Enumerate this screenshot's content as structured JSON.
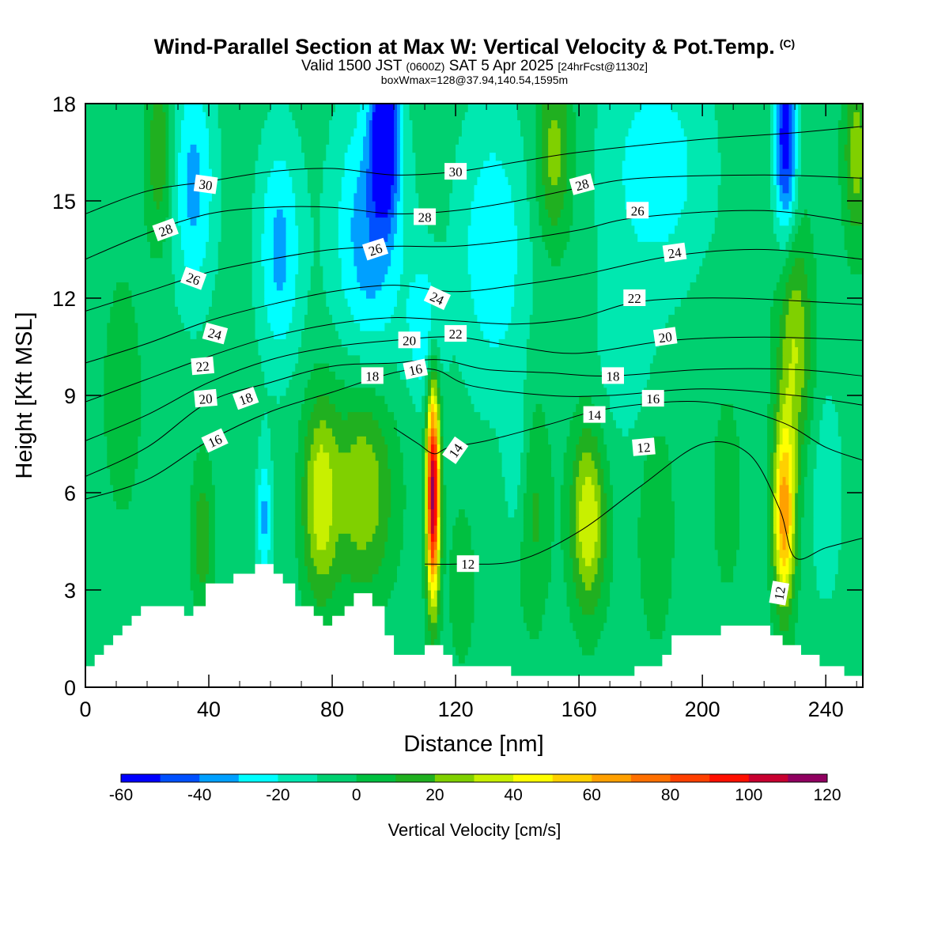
{
  "title": {
    "main": "Wind-Parallel Section at Max W: Vertical Velocity & Pot.Temp.",
    "copyright": "(C)",
    "valid_prefix": "Valid 1500 JST",
    "valid_utc": "(0600Z)",
    "valid_date": "SAT 5 Apr 2025",
    "forecast": "[24hrFcst@1130z]",
    "box": "boxWmax=128@37.94,140.54,1595m"
  },
  "chart_data": {
    "type": "heatmap",
    "xlabel": "Distance [nm]",
    "ylabel": "Height [Kft MSL]",
    "xlim": [
      0,
      252
    ],
    "ylim": [
      0,
      18
    ],
    "x_ticks": [
      0,
      40,
      80,
      120,
      160,
      200,
      240
    ],
    "y_ticks": [
      0,
      3,
      6,
      9,
      12,
      15,
      18
    ],
    "colorbar": {
      "label": "Vertical Velocity [cm/s]",
      "ticks": [
        -60,
        -40,
        -20,
        0,
        20,
        40,
        60,
        80,
        100,
        120
      ],
      "levels": [
        -60,
        -50,
        -40,
        -30,
        -20,
        -10,
        0,
        10,
        20,
        30,
        40,
        50,
        60,
        70,
        80,
        90,
        100,
        110,
        120
      ],
      "colors": [
        "#0000ff",
        "#0050ff",
        "#00a0ff",
        "#00ffff",
        "#00e8b0",
        "#00d070",
        "#00c040",
        "#20b020",
        "#80d000",
        "#c8f000",
        "#ffff00",
        "#ffd000",
        "#ffa000",
        "#ff7000",
        "#ff4000",
        "#ff1000",
        "#c80030",
        "#900060"
      ]
    },
    "w_background": -5,
    "updrafts": [
      {
        "x": 112.7,
        "z": 6.0,
        "peak": 120,
        "sx": 1.5,
        "sz": 2.3
      },
      {
        "x": 226.5,
        "z": 5.3,
        "peak": 72,
        "sx": 2.5,
        "sz": 2.0
      },
      {
        "x": 90,
        "z": 6.2,
        "peak": 35,
        "sx": 7,
        "sz": 2.3
      },
      {
        "x": 76,
        "z": 5.8,
        "peak": 40,
        "sx": 4,
        "sz": 2.2
      },
      {
        "x": 163,
        "z": 5.2,
        "peak": 45,
        "sx": 4,
        "sz": 2.0
      },
      {
        "x": 38,
        "z": 4.6,
        "peak": 22,
        "sx": 2.5,
        "sz": 1.7
      },
      {
        "x": 122,
        "z": 3.2,
        "peak": 12,
        "sx": 3,
        "sz": 1.8
      },
      {
        "x": 145,
        "z": 5.5,
        "peak": 18,
        "sx": 4,
        "sz": 2.5
      },
      {
        "x": 185,
        "z": 5.0,
        "peak": 14,
        "sx": 4,
        "sz": 2.5
      },
      {
        "x": 208,
        "z": 6.0,
        "peak": 14,
        "sx": 3,
        "sz": 2.0
      },
      {
        "x": 230,
        "z": 10.5,
        "peak": 35,
        "sx": 4,
        "sz": 2.5
      },
      {
        "x": 152,
        "z": 16.5,
        "peak": 30,
        "sx": 4,
        "sz": 2.0
      },
      {
        "x": 250,
        "z": 16.5,
        "peak": 30,
        "sx": 3,
        "sz": 2.0
      },
      {
        "x": 24,
        "z": 16.5,
        "peak": 25,
        "sx": 3,
        "sz": 2.0
      },
      {
        "x": 12,
        "z": 9.0,
        "peak": 10,
        "sx": 5,
        "sz": 3.0
      }
    ],
    "downdrafts": [
      {
        "x": 97,
        "z": 17.2,
        "peak": -62,
        "sx": 3,
        "sz": 1.8
      },
      {
        "x": 227,
        "z": 17.0,
        "peak": -55,
        "sx": 2.5,
        "sz": 2.2
      },
      {
        "x": 92,
        "z": 14.0,
        "peak": -32,
        "sx": 8,
        "sz": 3.0
      },
      {
        "x": 63,
        "z": 13.5,
        "peak": -28,
        "sx": 5,
        "sz": 2.5
      },
      {
        "x": 35,
        "z": 15.5,
        "peak": -28,
        "sx": 5,
        "sz": 2.5
      },
      {
        "x": 132,
        "z": 13.5,
        "peak": -24,
        "sx": 8,
        "sz": 3.0
      },
      {
        "x": 185,
        "z": 16.0,
        "peak": -22,
        "sx": 12,
        "sz": 2.5
      },
      {
        "x": 110,
        "z": 11.0,
        "peak": -24,
        "sx": 4,
        "sz": 1.5
      },
      {
        "x": 58,
        "z": 5.2,
        "peak": -28,
        "sx": 1.6,
        "sz": 1.5
      },
      {
        "x": 140,
        "z": 7.0,
        "peak": -15,
        "sx": 3,
        "sz": 2.0
      },
      {
        "x": 240,
        "z": 6.0,
        "peak": -12,
        "sx": 4,
        "sz": 2.5
      },
      {
        "x": 175,
        "z": 10.0,
        "peak": -10,
        "sx": 8,
        "sz": 2.0
      }
    ],
    "terrain": [
      [
        0,
        0.65
      ],
      [
        3,
        0.65
      ],
      [
        3,
        1.0
      ],
      [
        6,
        1.0
      ],
      [
        6,
        1.3
      ],
      [
        9,
        1.3
      ],
      [
        9,
        1.6
      ],
      [
        12,
        1.6
      ],
      [
        12,
        1.9
      ],
      [
        15,
        1.9
      ],
      [
        15,
        2.2
      ],
      [
        18,
        2.2
      ],
      [
        18,
        2.5
      ],
      [
        32,
        2.5
      ],
      [
        32,
        2.2
      ],
      [
        35,
        2.2
      ],
      [
        35,
        2.5
      ],
      [
        39,
        2.5
      ],
      [
        39,
        3.2
      ],
      [
        48,
        3.2
      ],
      [
        48,
        3.5
      ],
      [
        55,
        3.5
      ],
      [
        55,
        3.8
      ],
      [
        61,
        3.8
      ],
      [
        61,
        3.5
      ],
      [
        64,
        3.5
      ],
      [
        64,
        3.2
      ],
      [
        68,
        3.2
      ],
      [
        68,
        2.5
      ],
      [
        74,
        2.5
      ],
      [
        74,
        2.2
      ],
      [
        77,
        2.2
      ],
      [
        77,
        1.9
      ],
      [
        80,
        1.9
      ],
      [
        80,
        2.2
      ],
      [
        84,
        2.2
      ],
      [
        84,
        2.5
      ],
      [
        87,
        2.5
      ],
      [
        87,
        2.9
      ],
      [
        93,
        2.9
      ],
      [
        93,
        2.5
      ],
      [
        97,
        2.5
      ],
      [
        97,
        1.6
      ],
      [
        100,
        1.6
      ],
      [
        100,
        1.0
      ],
      [
        110,
        1.0
      ],
      [
        110,
        1.3
      ],
      [
        116,
        1.3
      ],
      [
        116,
        1.0
      ],
      [
        119,
        1.0
      ],
      [
        119,
        0.65
      ],
      [
        138,
        0.65
      ],
      [
        138,
        0.35
      ],
      [
        178,
        0.35
      ],
      [
        178,
        0.65
      ],
      [
        187,
        0.65
      ],
      [
        187,
        1.0
      ],
      [
        190,
        1.0
      ],
      [
        190,
        1.6
      ],
      [
        206,
        1.6
      ],
      [
        206,
        1.9
      ],
      [
        222,
        1.9
      ],
      [
        222,
        1.6
      ],
      [
        226,
        1.6
      ],
      [
        226,
        1.3
      ],
      [
        232,
        1.3
      ],
      [
        232,
        1.0
      ],
      [
        238,
        1.0
      ],
      [
        238,
        0.65
      ],
      [
        246,
        0.65
      ],
      [
        246,
        0.35
      ],
      [
        252,
        0.35
      ]
    ],
    "theta_contours": [
      {
        "level": 12,
        "points": [
          [
            110,
            3.8
          ],
          [
            120,
            3.8
          ],
          [
            140,
            3.9
          ],
          [
            160,
            4.8
          ],
          [
            180,
            6.2
          ],
          [
            200,
            7.5
          ],
          [
            215,
            7.2
          ],
          [
            225,
            5.5
          ],
          [
            230,
            4.0
          ],
          [
            240,
            4.3
          ],
          [
            252,
            4.6
          ]
        ]
      },
      {
        "level": 14,
        "points": [
          [
            100,
            8.0
          ],
          [
            108,
            7.5
          ],
          [
            113,
            7.2
          ],
          [
            118,
            7.4
          ],
          [
            130,
            7.6
          ],
          [
            150,
            8.1
          ],
          [
            170,
            8.6
          ],
          [
            200,
            8.8
          ],
          [
            225,
            8.2
          ],
          [
            240,
            7.4
          ],
          [
            252,
            7.0
          ]
        ]
      },
      {
        "level": 16,
        "points": [
          [
            0,
            5.8
          ],
          [
            20,
            6.4
          ],
          [
            40,
            7.6
          ],
          [
            60,
            8.5
          ],
          [
            80,
            9.1
          ],
          [
            100,
            9.7
          ],
          [
            113,
            9.8
          ],
          [
            125,
            9.3
          ],
          [
            150,
            9.0
          ],
          [
            170,
            9.0
          ],
          [
            200,
            9.2
          ],
          [
            230,
            9.0
          ],
          [
            252,
            8.7
          ]
        ]
      },
      {
        "level": 18,
        "points": [
          [
            0,
            6.5
          ],
          [
            20,
            7.4
          ],
          [
            40,
            8.8
          ],
          [
            60,
            9.4
          ],
          [
            80,
            9.9
          ],
          [
            100,
            10.0
          ],
          [
            115,
            10.1
          ],
          [
            130,
            9.8
          ],
          [
            150,
            9.7
          ],
          [
            170,
            9.6
          ],
          [
            200,
            9.8
          ],
          [
            230,
            9.8
          ],
          [
            252,
            9.6
          ]
        ]
      },
      {
        "level": 20,
        "points": [
          [
            0,
            7.6
          ],
          [
            20,
            8.4
          ],
          [
            40,
            9.4
          ],
          [
            60,
            10.1
          ],
          [
            80,
            10.5
          ],
          [
            100,
            10.7
          ],
          [
            120,
            10.8
          ],
          [
            140,
            10.5
          ],
          [
            160,
            10.3
          ],
          [
            190,
            10.7
          ],
          [
            220,
            10.8
          ],
          [
            252,
            10.7
          ]
        ]
      },
      {
        "level": 22,
        "points": [
          [
            0,
            8.8
          ],
          [
            20,
            9.5
          ],
          [
            40,
            10.2
          ],
          [
            60,
            10.8
          ],
          [
            80,
            11.2
          ],
          [
            100,
            11.4
          ],
          [
            120,
            11.3
          ],
          [
            140,
            11.2
          ],
          [
            160,
            11.4
          ],
          [
            180,
            11.9
          ],
          [
            210,
            12.0
          ],
          [
            252,
            11.8
          ]
        ]
      },
      {
        "level": 24,
        "points": [
          [
            0,
            10.0
          ],
          [
            20,
            10.6
          ],
          [
            40,
            11.3
          ],
          [
            60,
            11.8
          ],
          [
            80,
            12.2
          ],
          [
            100,
            12.4
          ],
          [
            120,
            12.2
          ],
          [
            140,
            12.4
          ],
          [
            160,
            12.7
          ],
          [
            190,
            13.3
          ],
          [
            220,
            13.5
          ],
          [
            252,
            13.2
          ]
        ]
      },
      {
        "level": 26,
        "points": [
          [
            0,
            11.6
          ],
          [
            20,
            12.2
          ],
          [
            40,
            12.8
          ],
          [
            60,
            13.2
          ],
          [
            80,
            13.5
          ],
          [
            100,
            13.6
          ],
          [
            120,
            13.6
          ],
          [
            140,
            13.8
          ],
          [
            160,
            14.1
          ],
          [
            180,
            14.5
          ],
          [
            220,
            14.7
          ],
          [
            252,
            14.3
          ]
        ]
      },
      {
        "level": 28,
        "points": [
          [
            0,
            13.2
          ],
          [
            20,
            14.0
          ],
          [
            40,
            14.6
          ],
          [
            60,
            14.8
          ],
          [
            80,
            14.8
          ],
          [
            100,
            14.6
          ],
          [
            120,
            14.7
          ],
          [
            140,
            15.0
          ],
          [
            160,
            15.4
          ],
          [
            180,
            15.7
          ],
          [
            220,
            15.8
          ],
          [
            252,
            15.7
          ]
        ]
      },
      {
        "level": 30,
        "points": [
          [
            0,
            14.6
          ],
          [
            20,
            15.3
          ],
          [
            40,
            15.6
          ],
          [
            60,
            15.9
          ],
          [
            80,
            16.0
          ],
          [
            100,
            15.8
          ],
          [
            120,
            15.9
          ],
          [
            140,
            16.2
          ],
          [
            160,
            16.5
          ],
          [
            200,
            16.9
          ],
          [
            230,
            17.1
          ],
          [
            252,
            17.3
          ]
        ]
      }
    ],
    "contour_labels": [
      {
        "text": "30",
        "x": 39,
        "z": 15.5,
        "angle": 8
      },
      {
        "text": "28",
        "x": 26,
        "z": 14.1,
        "angle": -20
      },
      {
        "text": "26",
        "x": 35,
        "z": 12.6,
        "angle": 20
      },
      {
        "text": "24",
        "x": 42,
        "z": 10.9,
        "angle": 15
      },
      {
        "text": "22",
        "x": 38,
        "z": 9.9,
        "angle": -5
      },
      {
        "text": "20",
        "x": 39,
        "z": 8.9,
        "angle": -5
      },
      {
        "text": "18",
        "x": 52,
        "z": 8.9,
        "angle": -20
      },
      {
        "text": "16",
        "x": 42,
        "z": 7.6,
        "angle": -25
      },
      {
        "text": "26",
        "x": 94,
        "z": 13.5,
        "angle": -18
      },
      {
        "text": "28",
        "x": 110,
        "z": 14.5,
        "angle": 0
      },
      {
        "text": "30",
        "x": 120,
        "z": 15.9,
        "angle": 0
      },
      {
        "text": "24",
        "x": 114,
        "z": 12.0,
        "angle": 25
      },
      {
        "text": "20",
        "x": 105,
        "z": 10.7,
        "angle": 0
      },
      {
        "text": "22",
        "x": 120,
        "z": 10.9,
        "angle": 0
      },
      {
        "text": "18",
        "x": 93,
        "z": 9.6,
        "angle": 0
      },
      {
        "text": "16",
        "x": 107,
        "z": 9.8,
        "angle": -12
      },
      {
        "text": "14",
        "x": 120,
        "z": 7.3,
        "angle": -55
      },
      {
        "text": "12",
        "x": 124,
        "z": 3.8,
        "angle": 0
      },
      {
        "text": "28",
        "x": 161,
        "z": 15.5,
        "angle": -15
      },
      {
        "text": "26",
        "x": 179,
        "z": 14.7,
        "angle": 0
      },
      {
        "text": "24",
        "x": 191,
        "z": 13.4,
        "angle": -8
      },
      {
        "text": "22",
        "x": 178,
        "z": 12.0,
        "angle": 0
      },
      {
        "text": "20",
        "x": 188,
        "z": 10.8,
        "angle": -8
      },
      {
        "text": "18",
        "x": 171,
        "z": 9.6,
        "angle": 0
      },
      {
        "text": "16",
        "x": 184,
        "z": 8.9,
        "angle": 0
      },
      {
        "text": "14",
        "x": 165,
        "z": 8.4,
        "angle": 0
      },
      {
        "text": "12",
        "x": 181,
        "z": 7.4,
        "angle": -5
      },
      {
        "text": "12",
        "x": 225,
        "z": 2.9,
        "angle": -80
      }
    ]
  }
}
